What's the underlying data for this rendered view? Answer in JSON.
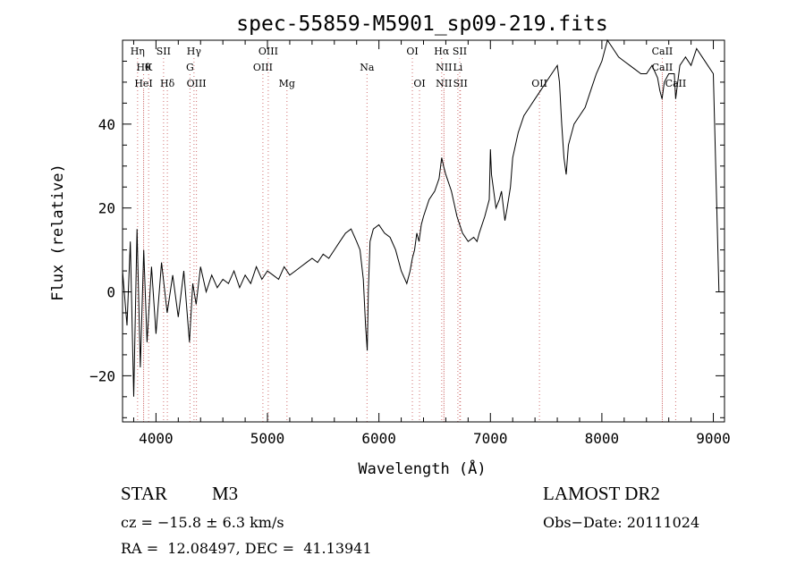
{
  "chart_data": {
    "type": "line",
    "title": "spec-55859-M5901_sp09-219.fits",
    "xlabel": "Wavelength (Å)",
    "ylabel": "Flux (relative)",
    "xlim": [
      3700,
      9100
    ],
    "ylim": [
      -31,
      60
    ],
    "x_ticks": [
      4000,
      5000,
      6000,
      7000,
      8000,
      9000
    ],
    "x_tick_labels": [
      "4000",
      "5000",
      "6000",
      "7000",
      "8000",
      "9000"
    ],
    "y_ticks": [
      -20,
      0,
      20,
      40
    ],
    "y_tick_labels": [
      "−20",
      "0",
      "20",
      "40"
    ],
    "grid": false,
    "series": [
      {
        "name": "flux",
        "x": [
          3700,
          3740,
          3770,
          3800,
          3830,
          3860,
          3890,
          3920,
          3960,
          4000,
          4050,
          4100,
          4150,
          4200,
          4250,
          4300,
          4330,
          4360,
          4400,
          4450,
          4500,
          4550,
          4600,
          4650,
          4700,
          4750,
          4800,
          4850,
          4900,
          4950,
          5000,
          5050,
          5100,
          5150,
          5200,
          5250,
          5300,
          5350,
          5400,
          5450,
          5500,
          5550,
          5600,
          5650,
          5700,
          5750,
          5800,
          5830,
          5860,
          5880,
          5895,
          5905,
          5920,
          5950,
          6000,
          6050,
          6100,
          6150,
          6200,
          6250,
          6280,
          6300,
          6320,
          6340,
          6360,
          6380,
          6400,
          6450,
          6500,
          6540,
          6563,
          6580,
          6600,
          6650,
          6700,
          6750,
          6800,
          6850,
          6880,
          6900,
          6950,
          6990,
          7000,
          7010,
          7050,
          7080,
          7100,
          7130,
          7150,
          7180,
          7200,
          7250,
          7300,
          7350,
          7400,
          7450,
          7500,
          7550,
          7600,
          7620,
          7640,
          7660,
          7680,
          7700,
          7750,
          7800,
          7850,
          7900,
          7950,
          8000,
          8050,
          8100,
          8150,
          8200,
          8250,
          8300,
          8350,
          8400,
          8450,
          8500,
          8520,
          8540,
          8560,
          8600,
          8650,
          8662,
          8680,
          8700,
          8750,
          8800,
          8850,
          8900,
          8950,
          9000,
          9050
        ],
        "y": [
          5,
          -8,
          12,
          -25,
          15,
          -18,
          10,
          -12,
          6,
          -10,
          7,
          -5,
          4,
          -6,
          5,
          -12,
          2,
          -3,
          6,
          0,
          4,
          1,
          3,
          2,
          5,
          1,
          4,
          2,
          6,
          3,
          5,
          4,
          3,
          6,
          4,
          5,
          6,
          7,
          8,
          7,
          9,
          8,
          10,
          12,
          14,
          15,
          12,
          10,
          3,
          -8,
          -14,
          0,
          12,
          15,
          16,
          14,
          13,
          10,
          5,
          2,
          5,
          8,
          10,
          14,
          12,
          16,
          18,
          22,
          24,
          27,
          32,
          30,
          28,
          24,
          18,
          14,
          12,
          13,
          12,
          14,
          18,
          22,
          34,
          28,
          20,
          22,
          24,
          17,
          20,
          25,
          32,
          38,
          42,
          44,
          46,
          48,
          50,
          52,
          54,
          50,
          40,
          32,
          28,
          35,
          40,
          42,
          44,
          48,
          52,
          55,
          60,
          58,
          56,
          55,
          54,
          53,
          52,
          52,
          54,
          51,
          48,
          46,
          50,
          52,
          52,
          46,
          50,
          54,
          56,
          54,
          58,
          56,
          54,
          52,
          0
        ]
      }
    ],
    "line_markers": [
      {
        "label": "Hη",
        "x": 3835,
        "row": 0
      },
      {
        "label": "Hθ",
        "x": 3889,
        "row": 1
      },
      {
        "label": "HeI",
        "x": 3889,
        "row": 2
      },
      {
        "label": "K",
        "x": 3934,
        "row": 1
      },
      {
        "label": "SII",
        "x": 4068,
        "row": 0
      },
      {
        "label": "Hδ",
        "x": 4102,
        "row": 2
      },
      {
        "label": "Hγ",
        "x": 4341,
        "row": 0
      },
      {
        "label": "G",
        "x": 4305,
        "row": 1
      },
      {
        "label": "OIII",
        "x": 4363,
        "row": 2
      },
      {
        "label": "OIII",
        "x": 5007,
        "row": 0
      },
      {
        "label": "OIII",
        "x": 4959,
        "row": 1
      },
      {
        "label": "Mg",
        "x": 5175,
        "row": 2
      },
      {
        "label": "Na",
        "x": 5893,
        "row": 1
      },
      {
        "label": "OI",
        "x": 6300,
        "row": 0
      },
      {
        "label": "OI",
        "x": 6364,
        "row": 2
      },
      {
        "label": "Hα",
        "x": 6563,
        "row": 0
      },
      {
        "label": "SII",
        "x": 6725,
        "row": 0
      },
      {
        "label": "NII",
        "x": 6583,
        "row": 1
      },
      {
        "label": "Li",
        "x": 6708,
        "row": 1
      },
      {
        "label": "NII",
        "x": 6583,
        "row": 2
      },
      {
        "label": "SII",
        "x": 6731,
        "row": 2
      },
      {
        "label": "OII",
        "x": 7440,
        "row": 2
      },
      {
        "label": "CaII",
        "x": 8542,
        "row": 0
      },
      {
        "label": "CaII",
        "x": 8542,
        "row": 1
      },
      {
        "label": "CaII",
        "x": 8662,
        "row": 2
      }
    ],
    "marker_color": "#d07070"
  },
  "info": {
    "object_type": "STAR",
    "subclass": "M3",
    "survey": "LAMOST DR2",
    "cz": "cz = −15.8 ± 6.3 km/s",
    "obs_date": "Obs−Date: 20111024",
    "coords": "RA =  12.08497, DEC =  41.13941"
  }
}
